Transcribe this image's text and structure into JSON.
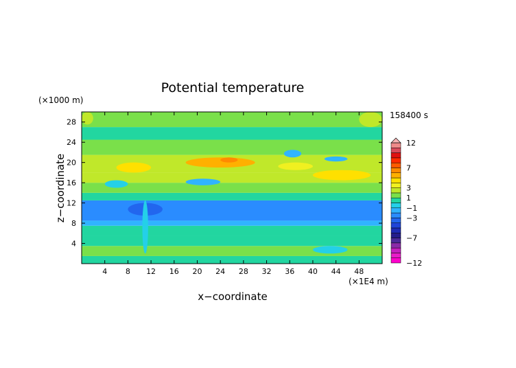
{
  "chart_data": {
    "type": "heatmap",
    "title": "Potential temperature",
    "xlabel": "x−coordinate",
    "ylabel": "z−coordinate",
    "x_unit": "(×1E4 m)",
    "y_unit": "(×1000 m)",
    "time_label": "158400 s",
    "xlim": [
      0,
      52
    ],
    "ylim": [
      0,
      30
    ],
    "x_ticks": [
      4,
      8,
      12,
      16,
      20,
      24,
      28,
      32,
      36,
      40,
      44,
      48
    ],
    "y_ticks": [
      4,
      8,
      12,
      16,
      20,
      24,
      28
    ],
    "colorbar": {
      "levels": [
        -12,
        -11,
        -10,
        -9,
        -8,
        -7,
        -6,
        -5,
        -4,
        -3,
        -2,
        -1,
        0,
        1,
        2,
        3,
        4,
        5,
        6,
        7,
        8,
        9,
        10,
        11,
        12
      ],
      "colors": [
        "#ff00cc",
        "#e81cc8",
        "#c51ec0",
        "#8a2aa8",
        "#4b2a9a",
        "#241c8c",
        "#1e2bb4",
        "#1f44d8",
        "#2266ee",
        "#2a8cff",
        "#30b4ff",
        "#24d0e8",
        "#22d6a0",
        "#7ae04a",
        "#c0e82a",
        "#f0f020",
        "#ffe000",
        "#ffb000",
        "#ff8a00",
        "#ff5a00",
        "#ff2a00",
        "#e01010",
        "#d84a5a",
        "#ee8a8a",
        "#f6b2b2"
      ],
      "labels": [
        "12",
        "7",
        "3",
        "1",
        "−1",
        "−3",
        "−7",
        "−12"
      ],
      "label_values": [
        12,
        7,
        3,
        1,
        -1,
        -3,
        -7,
        -12
      ],
      "extend": "max"
    },
    "bands": [
      {
        "z": [
          0,
          1.5
        ],
        "value": 0.2
      },
      {
        "z": [
          1.5,
          3.5
        ],
        "value": 0.6
      },
      {
        "z": [
          3.5,
          5.5
        ],
        "value": -0.2
      },
      {
        "z": [
          5.5,
          7.5
        ],
        "value": 0.4
      },
      {
        "z": [
          7.5,
          8.5
        ],
        "value": -1.6
      },
      {
        "z": [
          8.5,
          12.5
        ],
        "value": -3.2
      },
      {
        "z": [
          12.5,
          14
        ],
        "value": 0.2
      },
      {
        "z": [
          14,
          16
        ],
        "value": 1.0
      },
      {
        "z": [
          16,
          18
        ],
        "value": 1.6
      },
      {
        "z": [
          18,
          21.5
        ],
        "value": 2.4
      },
      {
        "z": [
          21.5,
          24.5
        ],
        "value": 0.8
      },
      {
        "z": [
          24.5,
          27
        ],
        "value": 0.2
      },
      {
        "z": [
          27,
          30
        ],
        "value": 1.0
      }
    ],
    "features": [
      {
        "x": [
          18,
          30
        ],
        "z": [
          19,
          21
        ],
        "value": 4.5
      },
      {
        "x": [
          24,
          27
        ],
        "z": [
          20,
          21
        ],
        "value": 6.0
      },
      {
        "x": [
          40,
          50
        ],
        "z": [
          16.5,
          18.5
        ],
        "value": 4.0
      },
      {
        "x": [
          6,
          12
        ],
        "z": [
          18,
          20
        ],
        "value": 3.5
      },
      {
        "x": [
          34,
          40
        ],
        "z": [
          18.5,
          20
        ],
        "value": 3.2
      },
      {
        "x": [
          4,
          8
        ],
        "z": [
          15,
          16.5
        ],
        "value": -1.5
      },
      {
        "x": [
          18,
          24
        ],
        "z": [
          15.5,
          16.8
        ],
        "value": -1.6
      },
      {
        "x": [
          35,
          38
        ],
        "z": [
          21,
          22.5
        ],
        "value": -1.7
      },
      {
        "x": [
          42,
          46
        ],
        "z": [
          20.2,
          21.2
        ],
        "value": -1.8
      },
      {
        "x": [
          8,
          14
        ],
        "z": [
          9.5,
          12
        ],
        "value": -3.6
      },
      {
        "x": [
          40,
          46
        ],
        "z": [
          2,
          3.5
        ],
        "value": -0.8
      },
      {
        "x": [
          0,
          2
        ],
        "z": [
          27.5,
          30
        ],
        "value": 2.2
      },
      {
        "x": [
          48,
          52
        ],
        "z": [
          27,
          30
        ],
        "value": 2.2
      },
      {
        "x": [
          10.5,
          11.5
        ],
        "z": [
          2,
          12.5
        ],
        "value": -0.6
      }
    ]
  }
}
